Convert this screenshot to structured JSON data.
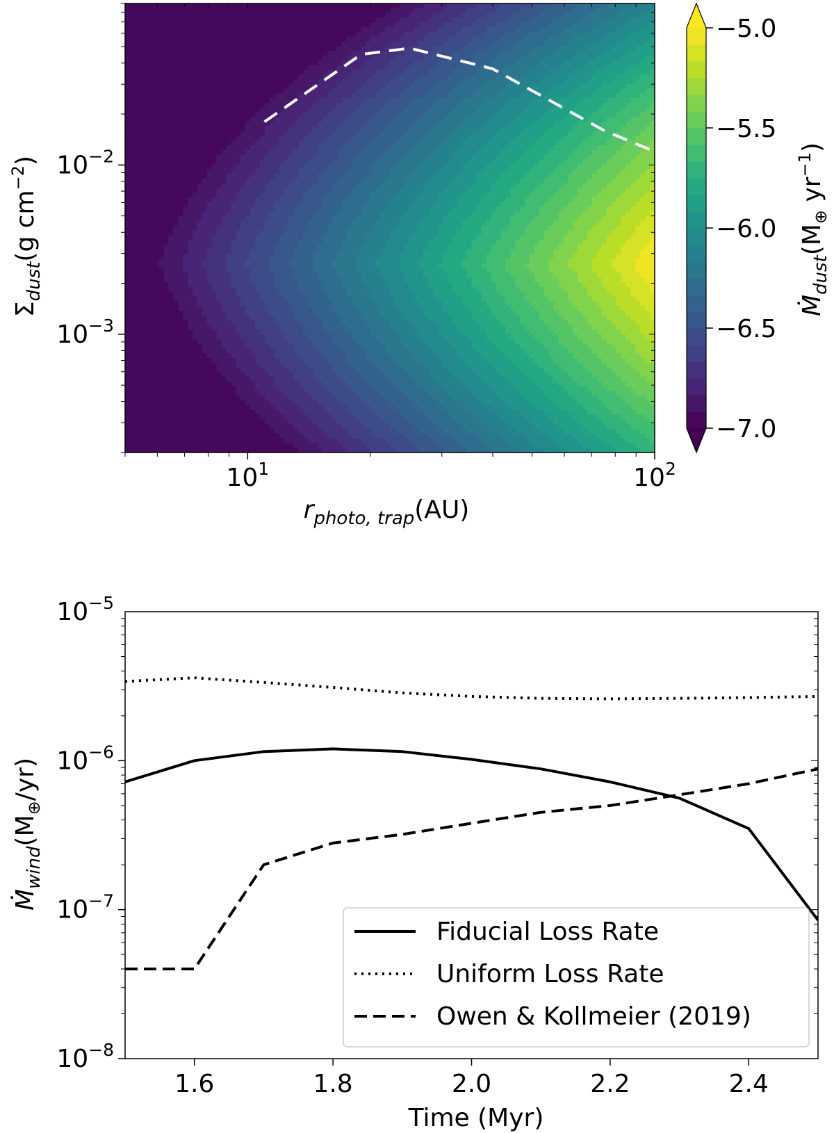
{
  "chart_data": [
    {
      "type": "heatmap",
      "title": "",
      "xlabel": "r_photo,trap (AU)",
      "xlabel_base": "r",
      "xlabel_sub": "photo, trap",
      "xlabel_unit": "(AU)",
      "ylabel": "Σ_dust (g cm^-2)",
      "ylabel_base": "Σ",
      "ylabel_sub": "dust",
      "ylabel_unit_pre": "(g cm",
      "ylabel_unit_sup": "−2",
      "ylabel_unit_post": ")",
      "x_scale": "log",
      "y_scale": "log",
      "xlim": [
        5,
        100
      ],
      "ylim": [
        0.0002,
        0.09
      ],
      "x_ticks": [
        {
          "value": 10,
          "base": "10",
          "exp": "1"
        },
        {
          "value": 100,
          "base": "10",
          "exp": "2"
        }
      ],
      "y_ticks": [
        {
          "value": 0.001,
          "base": "10",
          "exp": "−3"
        },
        {
          "value": 0.01,
          "base": "10",
          "exp": "−2"
        }
      ],
      "colorbar": {
        "label_base": "Ṁ",
        "label_sub": "dust",
        "label_unit_pre": "(M",
        "label_unit_sym": "⊕",
        "label_unit_mid": " yr",
        "label_unit_sup": "−1",
        "label_unit_post": ")",
        "min": -7.0,
        "max": -5.0,
        "levels": 24,
        "extend": "both",
        "colormap": "viridis",
        "ticks": [
          {
            "value": -5.0,
            "label": "−5.0"
          },
          {
            "value": -5.5,
            "label": "−5.5"
          },
          {
            "value": -6.0,
            "label": "−6.0"
          },
          {
            "value": -6.5,
            "label": "−6.5"
          },
          {
            "value": -7.0,
            "label": "−7.0"
          }
        ]
      },
      "overlay_line": {
        "style": "dashed",
        "color": "#ffffff",
        "x": [
          11,
          19,
          25,
          40,
          75,
          100
        ],
        "y": [
          0.018,
          0.045,
          0.049,
          0.037,
          0.016,
          0.012
        ]
      }
    },
    {
      "type": "line",
      "title": "",
      "xlabel": "Time (Myr)",
      "ylabel": "Ṁ_wind (M⊕/yr)",
      "ylabel_base": "Ṁ",
      "ylabel_sub": "wind",
      "ylabel_unit_pre": "(M",
      "ylabel_unit_sym": "⊕",
      "ylabel_unit_post": "/yr)",
      "y_scale": "log",
      "xlim": [
        1.5,
        2.5
      ],
      "ylim": [
        1e-08,
        1e-05
      ],
      "x_ticks": [
        {
          "value": 1.6,
          "label": "1.6"
        },
        {
          "value": 1.8,
          "label": "1.8"
        },
        {
          "value": 2.0,
          "label": "2.0"
        },
        {
          "value": 2.2,
          "label": "2.2"
        },
        {
          "value": 2.4,
          "label": "2.4"
        }
      ],
      "y_ticks": [
        {
          "value": 1e-08,
          "base": "10",
          "exp": "−8"
        },
        {
          "value": 1e-07,
          "base": "10",
          "exp": "−7"
        },
        {
          "value": 1e-06,
          "base": "10",
          "exp": "−6"
        },
        {
          "value": 1e-05,
          "base": "10",
          "exp": "−5"
        }
      ],
      "legend": "lower-right",
      "x": [
        1.5,
        1.6,
        1.7,
        1.8,
        1.9,
        2.0,
        2.1,
        2.2,
        2.3,
        2.4,
        2.5
      ],
      "series": [
        {
          "name": "Fiducial Loss Rate",
          "style": "solid",
          "values": [
            7.2e-07,
            1e-06,
            1.15e-06,
            1.2e-06,
            1.15e-06,
            1.02e-06,
            8.8e-07,
            7.2e-07,
            5.6e-07,
            3.5e-07,
            8.5e-08
          ]
        },
        {
          "name": "Uniform Loss Rate",
          "style": "dotted",
          "values": [
            3.4e-06,
            3.6e-06,
            3.35e-06,
            3.1e-06,
            2.85e-06,
            2.7e-06,
            2.62e-06,
            2.6e-06,
            2.62e-06,
            2.65e-06,
            2.7e-06
          ]
        },
        {
          "name": "Owen & Kollmeier (2019)",
          "style": "dashed",
          "values": [
            4e-08,
            4e-08,
            2e-07,
            2.8e-07,
            3.2e-07,
            3.8e-07,
            4.5e-07,
            5e-07,
            5.9e-07,
            7e-07,
            8.8e-07
          ]
        }
      ]
    }
  ]
}
